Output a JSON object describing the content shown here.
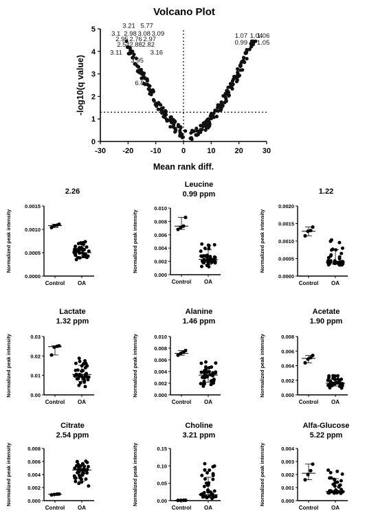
{
  "volcano": {
    "title": "Volcano Plot",
    "xlabel": "Mean rank diff.",
    "ylabel": "-log10(q value)",
    "xticks": [
      "-30",
      "-20",
      "-10",
      "0",
      "10",
      "20",
      "30"
    ],
    "yticks": [
      "0",
      "1",
      "2",
      "3",
      "4",
      "5"
    ],
    "labels_left": [
      {
        "text": "3.21",
        "x": -22.0,
        "y": 5.05
      },
      {
        "text": "5.77",
        "x": -15.5,
        "y": 5.05
      },
      {
        "text": "3.1",
        "x": -26.0,
        "y": 4.7
      },
      {
        "text": "2.98",
        "x": -21.5,
        "y": 4.7
      },
      {
        "text": "3.08",
        "x": -16.5,
        "y": 4.7
      },
      {
        "text": "3.09",
        "x": -11.5,
        "y": 4.7
      },
      {
        "text": "2.95",
        "x": -24.5,
        "y": 4.45
      },
      {
        "text": "2.76",
        "x": -19.5,
        "y": 4.45
      },
      {
        "text": "2.97",
        "x": -14.5,
        "y": 4.45
      },
      {
        "text": "2.54",
        "x": -24.0,
        "y": 4.2
      },
      {
        "text": "2.88",
        "x": -19.5,
        "y": 4.2
      },
      {
        "text": "2.82",
        "x": -15.0,
        "y": 4.2
      },
      {
        "text": "3.11",
        "x": -26.5,
        "y": 3.85
      },
      {
        "text": "3.16",
        "x": -12.0,
        "y": 3.85
      },
      {
        "text": "3.95",
        "x": -19.0,
        "y": 3.5
      },
      {
        "text": "6.84",
        "x": -17.5,
        "y": 2.5
      }
    ],
    "labels_right": [
      {
        "text": "1.07",
        "x": 18.5,
        "y": 4.6
      },
      {
        "text": "1.04",
        "x": 24.0,
        "y": 4.6
      },
      {
        "text": "1.06",
        "x": 26.5,
        "y": 4.6
      },
      {
        "text": "0.99",
        "x": 18.5,
        "y": 4.3
      },
      {
        "text": "1.05",
        "x": 26.5,
        "y": 4.3
      }
    ]
  },
  "chart_data": [
    {
      "type": "scatter",
      "title": "Volcano Plot",
      "xlabel": "Mean rank diff.",
      "ylabel": "-log10(q value)",
      "xlim": [
        -30,
        30
      ],
      "ylim": [
        0,
        5
      ],
      "threshold_y": 1.3,
      "threshold_x": 0
    },
    {
      "type": "scatter",
      "title": "2.26",
      "ylabel": "Normalized peak intensity",
      "categories": [
        "Control",
        "OA"
      ],
      "ylim": [
        0,
        0.0015
      ],
      "yticks": [
        "0.0000",
        "0.0005",
        "0.0010",
        "0.0015"
      ],
      "control": [
        0.00104,
        0.00108,
        0.00109,
        0.00111
      ],
      "oa_range": [
        0.0003,
        0.00075
      ],
      "oa_n": 40,
      "control_median": 0.00108,
      "oa_median": 0.0005
    },
    {
      "type": "scatter",
      "title": "Leucine",
      "subtitle": "0.99 ppm",
      "ylabel": "Normalized peak intensity",
      "categories": [
        "Control",
        "OA"
      ],
      "ylim": [
        0,
        0.01
      ],
      "yticks": [
        "0.000",
        "0.002",
        "0.004",
        "0.006",
        "0.008",
        "0.010"
      ],
      "control": [
        0.0068,
        0.0071,
        0.0073,
        0.0086
      ],
      "oa_range": [
        0.0009,
        0.0049
      ],
      "oa_n": 40,
      "control_median": 0.0073,
      "oa_median": 0.0023
    },
    {
      "type": "scatter",
      "title": "1.22",
      "ylabel": "Normalized peak intensity",
      "categories": [
        "Control",
        "OA"
      ],
      "ylim": [
        0,
        0.002
      ],
      "yticks": [
        "0.0000",
        "0.0005",
        "0.0010",
        "0.0015",
        "0.0020"
      ],
      "control": [
        0.00115,
        0.00128,
        0.0013,
        0.0014
      ],
      "oa_range": [
        0.0003,
        0.00105
      ],
      "oa_n": 40,
      "control_median": 0.00128,
      "oa_median": 0.0004
    },
    {
      "type": "scatter",
      "title": "Lactate",
      "subtitle": "1.32 ppm",
      "ylabel": "Normalized peak intensity",
      "categories": [
        "Control",
        "OA"
      ],
      "ylim": [
        0,
        0.03
      ],
      "yticks": [
        "0.00",
        "0.01",
        "0.02",
        "0.03"
      ],
      "control": [
        0.0205,
        0.0245,
        0.025,
        0.0252
      ],
      "oa_range": [
        0.004,
        0.019
      ],
      "oa_n": 40,
      "control_median": 0.0248,
      "oa_median": 0.0105
    },
    {
      "type": "scatter",
      "title": "Alanine",
      "subtitle": "1.46 ppm",
      "ylabel": "Normalized peak intensity",
      "categories": [
        "Control",
        "OA"
      ],
      "ylim": [
        0,
        0.01
      ],
      "yticks": [
        "0.000",
        "0.002",
        "0.004",
        "0.006",
        "0.008",
        "0.010"
      ],
      "control": [
        0.0068,
        0.0071,
        0.0073,
        0.0076
      ],
      "oa_range": [
        0.0012,
        0.0058
      ],
      "oa_n": 40,
      "control_median": 0.0071,
      "oa_median": 0.0034
    },
    {
      "type": "scatter",
      "title": "Acetate",
      "subtitle": "1.90 ppm",
      "ylabel": "Normalized peak intensity",
      "categories": [
        "Control",
        "OA"
      ],
      "ylim": [
        0,
        0.008
      ],
      "yticks": [
        "0.000",
        "0.002",
        "0.004",
        "0.006",
        "0.008"
      ],
      "control": [
        0.0044,
        0.0049,
        0.0051,
        0.0054
      ],
      "oa_range": [
        0.0009,
        0.0027
      ],
      "oa_n": 40,
      "control_median": 0.005,
      "oa_median": 0.0016
    },
    {
      "type": "scatter",
      "title": "Citrate",
      "subtitle": "2.54 ppm",
      "ylabel": "Normalized peak intensity",
      "categories": [
        "Control",
        "OA"
      ],
      "ylim": [
        0,
        0.008
      ],
      "yticks": [
        "0.000",
        "0.002",
        "0.004",
        "0.006",
        "0.008"
      ],
      "control": [
        0.00088,
        0.00095,
        0.001,
        0.00102
      ],
      "oa_range": [
        0.0016,
        0.0061
      ],
      "oa_n": 40,
      "control_median": 0.00097,
      "oa_median": 0.0047
    },
    {
      "type": "scatter",
      "title": "Choline",
      "subtitle": "3.21 ppm",
      "ylabel": "Normalized peak intensity",
      "categories": [
        "Control",
        "OA"
      ],
      "ylim": [
        0,
        0.15
      ],
      "yticks": [
        "0.00",
        "0.05",
        "0.10",
        "0.15"
      ],
      "control": [
        0.0008,
        0.001,
        0.0011,
        0.0012
      ],
      "oa_range": [
        0.001,
        0.108
      ],
      "oa_n": 40,
      "control_median": 0.001,
      "oa_median": 0.017
    },
    {
      "type": "scatter",
      "title": "Alfa-Glucose",
      "subtitle": "5.22 ppm",
      "ylabel": "Normalized peak intensity",
      "categories": [
        "Control",
        "OA"
      ],
      "ylim": [
        0,
        0.004
      ],
      "yticks": [
        "0.000",
        "0.001",
        "0.002",
        "0.003",
        "0.004"
      ],
      "control": [
        0.0016,
        0.002,
        0.0023,
        0.0028
      ],
      "oa_range": [
        0.0005,
        0.0025
      ],
      "oa_n": 40,
      "control_median": 0.0021,
      "oa_median": 0.0007
    }
  ]
}
